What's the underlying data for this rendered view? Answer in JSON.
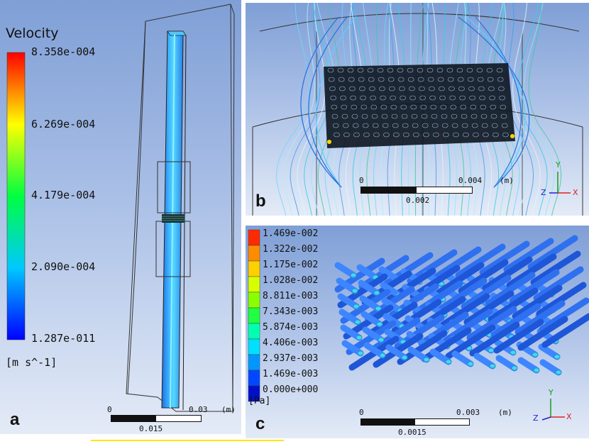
{
  "panel_a": {
    "letter": "a",
    "legend": {
      "title": "Velocity",
      "ticks": [
        "8.358e-004",
        "6.269e-004",
        "4.179e-004",
        "2.090e-004",
        "1.287e-011"
      ],
      "unit": "[m s^-1]"
    },
    "scale_bar": {
      "start": "0",
      "end": "0.03",
      "unit": "(m)",
      "mid": "0.015"
    }
  },
  "panel_b": {
    "letter": "b",
    "scale_bar": {
      "start": "0",
      "end": "0.004",
      "unit": "(m)",
      "mid": "0.002"
    },
    "axes": {
      "x": "X",
      "y": "Y",
      "z": "Z"
    }
  },
  "panel_c": {
    "letter": "c",
    "legend": {
      "ticks": [
        "1.469e-002",
        "1.322e-002",
        "1.175e-002",
        "1.028e-002",
        "8.811e-003",
        "7.343e-003",
        "5.874e-003",
        "4.406e-003",
        "2.937e-003",
        "1.469e-003",
        "0.000e+000"
      ],
      "unit": "[Pa]"
    },
    "scale_bar": {
      "start": "0",
      "end": "0.003",
      "unit": "(m)",
      "mid": "0.0015"
    },
    "axes": {
      "x": "X",
      "y": "Y",
      "z": "Z"
    }
  },
  "colors": {
    "background_top": "#7f9fd6",
    "background_bottom": "#e4ebf7",
    "colormap": [
      "#0000ff",
      "#00ffff",
      "#00ff00",
      "#ffff00",
      "#ff0000"
    ],
    "highlight_bar": "#ffe600"
  }
}
